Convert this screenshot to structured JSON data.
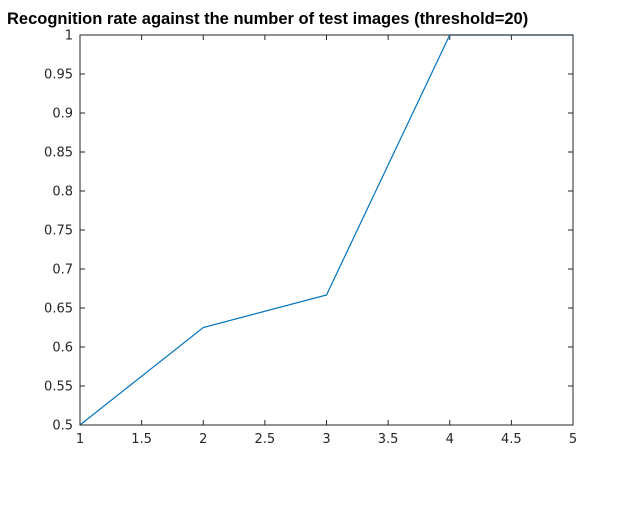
{
  "chart_data": {
    "type": "line",
    "title": "Recognition rate against the number of test images (threshold=20)",
    "xlabel": "",
    "ylabel": "",
    "x": [
      1,
      2,
      3,
      4,
      5
    ],
    "series": [
      {
        "values": [
          0.5,
          0.625,
          0.6667,
          1.0,
          1.0
        ],
        "color": "#0072BD"
      }
    ],
    "xlim": [
      1,
      5
    ],
    "ylim": [
      0.5,
      1
    ],
    "xticks": [
      1,
      1.5,
      2,
      2.5,
      3,
      3.5,
      4,
      4.5,
      5
    ],
    "xtick_labels": [
      "1",
      "1.5",
      "2",
      "2.5",
      "3",
      "3.5",
      "4",
      "4.5",
      "5"
    ],
    "yticks": [
      0.5,
      0.55,
      0.6,
      0.65,
      0.7,
      0.75,
      0.8,
      0.85,
      0.9,
      0.95,
      1
    ],
    "ytick_labels": [
      "0.5",
      "0.55",
      "0.6",
      "0.65",
      "0.7",
      "0.75",
      "0.8",
      "0.85",
      "0.9",
      "0.95",
      "1"
    ],
    "grid": false,
    "box": true,
    "axis_color": "#262626"
  }
}
